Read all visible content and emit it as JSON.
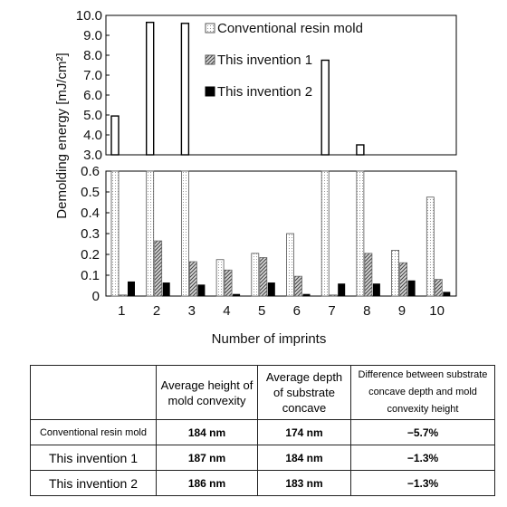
{
  "chart_data": {
    "type": "bar",
    "xlabel": "Number of imprints",
    "ylabel": "Demolding energy  [mJ/cm²]",
    "categories": [
      "1",
      "2",
      "3",
      "4",
      "5",
      "6",
      "7",
      "8",
      "9",
      "10"
    ],
    "series": [
      {
        "name": "Conventional resin mold",
        "values": [
          4.95,
          9.65,
          9.6,
          0.175,
          0.205,
          0.3,
          7.75,
          3.5,
          0.22,
          0.475
        ]
      },
      {
        "name": "This invention 1",
        "values": [
          0.005,
          0.265,
          0.165,
          0.125,
          0.185,
          0.095,
          0.005,
          0.205,
          0.16,
          0.08
        ]
      },
      {
        "name": "This invention 2",
        "values": [
          0.07,
          0.065,
          0.055,
          0.01,
          0.065,
          0.01,
          0.06,
          0.06,
          0.075,
          0.02
        ]
      }
    ],
    "upper_panel": {
      "ylim": [
        3.0,
        10.0
      ],
      "ticks": [
        "10.0",
        "9.0",
        "8.0",
        "7.0",
        "6.0",
        "5.0",
        "4.0",
        "3.0"
      ]
    },
    "lower_panel": {
      "ylim": [
        0,
        0.6
      ],
      "ticks": [
        "0.6",
        "0.5",
        "0.4",
        "0.3",
        "0.2",
        "0.1",
        "0"
      ]
    },
    "legend": "top-right",
    "grid": false
  },
  "table": {
    "headers": [
      "",
      "Average height of mold convexity",
      "Average depth of substrate concave",
      "Difference between substrate concave depth and mold convexity height"
    ],
    "rows": [
      {
        "label": "Conventional resin mold",
        "height": "184 nm",
        "depth": "174 nm",
        "diff": "−5.7%"
      },
      {
        "label": "This invention 1",
        "height": "187 nm",
        "depth": "184 nm",
        "diff": "−1.3%"
      },
      {
        "label": "This invention 2",
        "height": "186 nm",
        "depth": "183 nm",
        "diff": "−1.3%"
      }
    ]
  }
}
